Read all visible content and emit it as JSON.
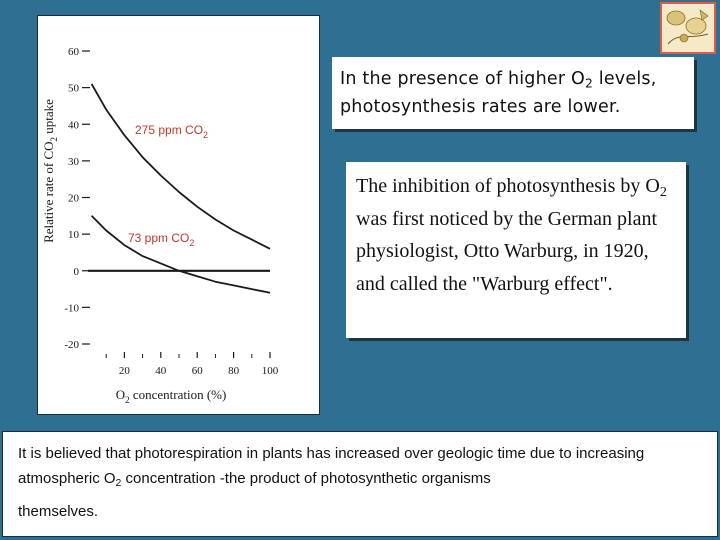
{
  "chart_data": {
    "type": "line",
    "xlabel": "O2 concentration (%)",
    "ylabel": "Relative rate of CO2 uptake",
    "x_ticks": [
      20,
      40,
      60,
      80,
      100
    ],
    "y_ticks": [
      60,
      50,
      40,
      30,
      20,
      10,
      0,
      -10,
      -20
    ],
    "xlim": [
      0,
      100
    ],
    "ylim": [
      -20,
      60
    ],
    "series": [
      {
        "name": "275 ppm CO2",
        "x": [
          2,
          10,
          20,
          30,
          40,
          50,
          60,
          70,
          80,
          90,
          100
        ],
        "y": [
          51,
          44,
          37,
          31,
          26,
          21.5,
          17.5,
          14,
          11,
          8.5,
          6
        ]
      },
      {
        "name": "73 ppm CO2",
        "x": [
          2,
          10,
          20,
          30,
          40,
          50,
          60,
          70,
          80,
          90,
          100
        ],
        "y": [
          15,
          11,
          7,
          4,
          2,
          0,
          -1.5,
          -3,
          -4,
          -5,
          -6
        ]
      },
      {
        "name": "",
        "x": [
          0,
          100
        ],
        "y": [
          0,
          0
        ]
      }
    ],
    "annotations": [
      {
        "text": "275 ppm CO2",
        "base": "275 ppm CO",
        "sub": "2"
      },
      {
        "text": "73 ppm CO2",
        "base": "73 ppm CO",
        "sub": "2"
      }
    ]
  },
  "callouts": {
    "top": {
      "line1_pre": "In the presence of higher O",
      "line1_sub": "2",
      "line1_post": " levels,",
      "line2": "photosynthesis rates are lower."
    },
    "middle": {
      "pre": "The inhibition of photosynthesis by O",
      "sub": "2",
      "post": " was first noticed by the German plant physiologist, Otto Warburg, in 1920, and called the \"Warburg effect\"."
    },
    "bottom": {
      "pre": "It is believed that photorespiration in plants has increased over geologic time due to increasing atmospheric O",
      "sub": "2",
      "post": "  concentration -the product of photosynthetic organisms",
      "last": "themselves."
    }
  },
  "colors": {
    "background": "#2f6f92",
    "accent": "#e05a4a",
    "ink": "#1a1a1a"
  }
}
